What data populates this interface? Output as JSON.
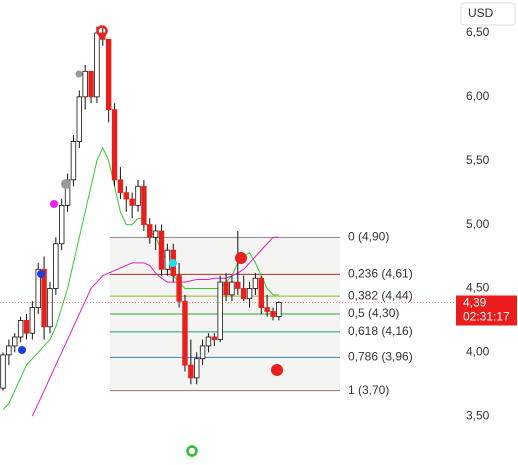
{
  "chart_data": {
    "type": "candlestick",
    "currency": "USD",
    "open": [
      3.72,
      3.98,
      4.05,
      4.12,
      4.25,
      4.15,
      4.35,
      4.65,
      4.2,
      4.5,
      4.85,
      5.15,
      5.35,
      5.65,
      6.0,
      6.2,
      6.0,
      6.5,
      6.45,
      5.9,
      5.35,
      5.25,
      5.2,
      5.15,
      5.3,
      5.0,
      4.9,
      4.95,
      4.65,
      4.8,
      4.6,
      4.4,
      3.9,
      3.8,
      3.95,
      4.05,
      4.12,
      4.1,
      4.55,
      4.45,
      4.55,
      4.5,
      4.42,
      4.5,
      4.58,
      4.35,
      4.32,
      4.28
    ],
    "high": [
      4.0,
      4.1,
      4.15,
      4.28,
      4.3,
      4.4,
      4.7,
      4.75,
      4.55,
      4.9,
      5.2,
      5.4,
      5.7,
      6.05,
      6.25,
      6.2,
      6.55,
      6.55,
      6.45,
      5.95,
      5.45,
      5.3,
      5.25,
      5.35,
      5.35,
      5.05,
      5.0,
      5.0,
      4.85,
      4.85,
      4.7,
      4.45,
      4.1,
      4.0,
      4.1,
      4.15,
      4.15,
      4.6,
      4.62,
      4.6,
      4.95,
      4.6,
      4.55,
      4.62,
      4.6,
      4.45,
      4.35,
      4.4
    ],
    "low": [
      3.7,
      3.9,
      4.0,
      4.08,
      4.1,
      4.1,
      4.3,
      4.1,
      4.15,
      4.45,
      4.8,
      5.1,
      5.3,
      5.6,
      5.9,
      5.95,
      5.95,
      6.4,
      5.8,
      5.3,
      5.2,
      5.1,
      5.05,
      5.1,
      4.95,
      4.85,
      4.8,
      4.6,
      4.6,
      4.55,
      4.35,
      3.85,
      3.75,
      3.75,
      3.9,
      4.0,
      4.05,
      4.08,
      4.4,
      4.4,
      4.45,
      4.4,
      4.35,
      4.45,
      4.3,
      4.28,
      4.25,
      4.25
    ],
    "close": [
      3.98,
      4.05,
      4.12,
      4.25,
      4.15,
      4.35,
      4.65,
      4.2,
      4.5,
      4.85,
      5.15,
      5.35,
      5.65,
      6.0,
      6.2,
      6.0,
      6.5,
      6.45,
      5.9,
      5.35,
      5.25,
      5.2,
      5.15,
      5.3,
      5.0,
      4.9,
      4.95,
      4.65,
      4.8,
      4.6,
      4.4,
      3.9,
      3.8,
      3.95,
      4.05,
      4.12,
      4.1,
      4.55,
      4.45,
      4.55,
      4.5,
      4.42,
      4.5,
      4.58,
      4.35,
      4.32,
      4.28,
      4.39
    ],
    "up_color": "#ffffff",
    "down_color": "#e8201c",
    "series": [
      {
        "color": "#33cc33",
        "values": [
          3.55,
          3.6,
          3.7,
          3.8,
          3.9,
          3.95,
          4.0,
          4.05,
          4.1,
          4.2,
          4.35,
          4.5,
          4.7,
          4.9,
          5.1,
          5.3,
          5.5,
          5.6,
          5.5,
          5.3,
          5.1,
          5.0,
          5.0,
          5.05,
          5.05,
          4.95,
          4.9,
          4.8,
          4.7,
          4.6,
          4.55,
          4.5,
          4.5,
          4.5,
          4.5,
          4.5,
          4.5,
          4.5,
          4.55,
          4.6,
          4.7,
          4.75,
          4.78,
          4.7,
          4.6,
          4.5,
          4.45,
          4.45
        ]
      },
      {
        "color": "#e020d0",
        "values": [
          null,
          null,
          null,
          null,
          null,
          3.5,
          3.6,
          3.7,
          3.8,
          3.9,
          4.0,
          4.1,
          4.2,
          4.3,
          4.4,
          4.5,
          4.55,
          4.6,
          4.62,
          4.64,
          4.66,
          4.68,
          4.7,
          4.7,
          4.7,
          4.68,
          4.62,
          4.58,
          4.55,
          4.55,
          4.55,
          4.55,
          4.56,
          4.57,
          4.57,
          4.57,
          4.58,
          4.58,
          4.58,
          4.6,
          4.62,
          4.65,
          4.7,
          4.75,
          4.8,
          4.85,
          4.9,
          4.9
        ]
      }
    ],
    "fib_levels": [
      {
        "value": 4.9,
        "label": "0 (4,90)",
        "color": "#888888"
      },
      {
        "value": 4.61,
        "label": "0,236 (4,61)",
        "color": "#b2282a"
      },
      {
        "value": 4.44,
        "label": "0,382 (4,44)",
        "color": "#92b32c"
      },
      {
        "value": 4.3,
        "label": "0,5 (4,30)",
        "color": "#3aa23a"
      },
      {
        "value": 4.16,
        "label": "0,618 (4,16)",
        "color": "#1f9e7e"
      },
      {
        "value": 3.96,
        "label": "0,786 (3,96)",
        "color": "#2c86b8"
      },
      {
        "value": 3.7,
        "label": "1 (3,70)",
        "color": "#a07070"
      }
    ],
    "ylim": [
      3.118,
      6.758
    ],
    "yticks": [
      {
        "value": 6.5,
        "label": "6,50"
      },
      {
        "value": 6.0,
        "label": "6,00"
      },
      {
        "value": 5.5,
        "label": "5,50"
      },
      {
        "value": 5.0,
        "label": "5,00"
      },
      {
        "value": 4.5,
        "label": "4,50"
      },
      {
        "value": 4.0,
        "label": "4,00"
      },
      {
        "value": 3.5,
        "label": "3,50"
      }
    ],
    "price_label": {
      "value": 4.39,
      "label": "4,39",
      "timer": "02:31:17"
    }
  }
}
